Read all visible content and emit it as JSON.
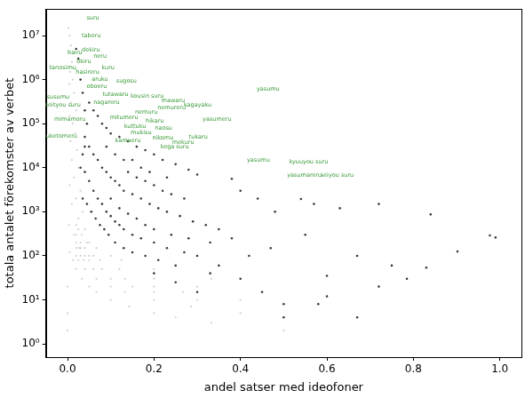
{
  "chart_data": {
    "type": "scatter",
    "xlabel": "andel satser med ideofoner",
    "ylabel": "totala antalet förekomster av verbet",
    "xlim": [
      -0.05,
      1.05
    ],
    "xticks": [
      {
        "value": 0,
        "label": "0.0"
      },
      0.2,
      0.4,
      0.6,
      0.8,
      {
        "value": 1,
        "label": "1.0"
      }
    ],
    "ylim": [
      0.5,
      40000000
    ],
    "yticks": [
      {
        "value": 1,
        "label": "10⁰"
      },
      {
        "value": 10,
        "label": "10¹"
      },
      {
        "value": 100,
        "label": "10²"
      },
      {
        "value": 1000,
        "label": "10³"
      },
      {
        "value": 10000,
        "label": "10⁴"
      },
      {
        "value": 100000,
        "label": "10⁵"
      },
      {
        "value": 1000000,
        "label": "10⁶"
      },
      {
        "value": 10000000,
        "label": "10⁷"
      }
    ],
    "log": "y",
    "grid": false,
    "series": [
      {
        "color": "#d0d0d0",
        "marker": "circle",
        "values": [
          [
            0.002,
            15000000
          ],
          [
            0.005,
            10000000
          ],
          [
            0.008,
            6000000
          ],
          [
            0.003,
            4000000
          ],
          [
            0.01,
            2500000
          ],
          [
            0.006,
            1500000
          ],
          [
            0.012,
            1000000
          ],
          [
            0.004,
            800000
          ],
          [
            0.015,
            500000
          ],
          [
            0.008,
            300000
          ],
          [
            0.02,
            200000
          ],
          [
            0.005,
            150000
          ],
          [
            0.012,
            100000
          ],
          [
            0.018,
            60000
          ],
          [
            0.007,
            40000
          ],
          [
            0.022,
            25000
          ],
          [
            0.01,
            15000
          ],
          [
            0.025,
            10000
          ],
          [
            0.015,
            6000
          ],
          [
            0.005,
            4000
          ],
          [
            0.03,
            3000
          ],
          [
            0.02,
            2000
          ],
          [
            0.01,
            1500
          ],
          [
            0.035,
            1000
          ],
          [
            0.025,
            700
          ],
          [
            0.003,
            500
          ],
          [
            0.04,
            400
          ],
          [
            0.015,
            300
          ],
          [
            0.045,
            200
          ],
          [
            0.03,
            150
          ],
          [
            0.005,
            120
          ],
          [
            0.05,
            100
          ],
          [
            0.5,
            2
          ],
          [
            0.333,
            3
          ],
          [
            0.25,
            4
          ],
          [
            0.2,
            5
          ],
          [
            0.143,
            7
          ],
          [
            0.1,
            10
          ],
          [
            0.067,
            15
          ],
          [
            0.05,
            20
          ],
          [
            0.033,
            30
          ],
          [
            0.02,
            50
          ],
          [
            0.0125,
            80
          ],
          [
            0.4,
            5
          ],
          [
            0.286,
            7
          ],
          [
            0.2,
            10
          ],
          [
            0.133,
            15
          ],
          [
            0.1,
            20
          ],
          [
            0.067,
            30
          ],
          [
            0.04,
            50
          ],
          [
            0.025,
            80
          ],
          [
            0.02,
            100
          ],
          [
            0.3,
            10
          ],
          [
            0.2,
            15
          ],
          [
            0.15,
            20
          ],
          [
            0.1,
            30
          ],
          [
            0.06,
            50
          ],
          [
            0.0375,
            80
          ],
          [
            0.03,
            100
          ],
          [
            0.02,
            150
          ],
          [
            0.4,
            10
          ],
          [
            0.267,
            15
          ],
          [
            0.2,
            20
          ],
          [
            0.133,
            30
          ],
          [
            0.08,
            50
          ],
          [
            0.05,
            80
          ],
          [
            0.04,
            100
          ],
          [
            0.027,
            150
          ],
          [
            0.02,
            200
          ],
          [
            0.3,
            20
          ],
          [
            0.2,
            30
          ],
          [
            0.12,
            50
          ],
          [
            0.075,
            80
          ],
          [
            0.06,
            100
          ],
          [
            0.04,
            150
          ],
          [
            0.03,
            200
          ],
          [
            0.02,
            300
          ],
          [
            0.333,
            30
          ],
          [
            0.2,
            50
          ],
          [
            0.125,
            80
          ],
          [
            0.1,
            100
          ],
          [
            0.067,
            150
          ],
          [
            0.05,
            200
          ],
          [
            0.033,
            300
          ],
          [
            0.025,
            400
          ],
          [
            0.02,
            500
          ],
          [
            0,
            2
          ],
          [
            0,
            5
          ],
          [
            0,
            20
          ]
        ]
      },
      {
        "color": "#3a3a3a",
        "marker": "circle",
        "values": [
          [
            0.05,
            300000
          ],
          [
            0.06,
            200000
          ],
          [
            0.07,
            150000
          ],
          [
            0.08,
            100000
          ],
          [
            0.09,
            80000
          ],
          [
            0.1,
            60000
          ],
          [
            0.12,
            50000
          ],
          [
            0.14,
            40000
          ],
          [
            0.16,
            30000
          ],
          [
            0.18,
            25000
          ],
          [
            0.2,
            20000
          ],
          [
            0.22,
            15000
          ],
          [
            0.25,
            12000
          ],
          [
            0.28,
            9000
          ],
          [
            0.3,
            7000
          ],
          [
            0.04,
            50000
          ],
          [
            0.05,
            30000
          ],
          [
            0.06,
            20000
          ],
          [
            0.07,
            15000
          ],
          [
            0.08,
            10000
          ],
          [
            0.09,
            8000
          ],
          [
            0.1,
            6000
          ],
          [
            0.11,
            5000
          ],
          [
            0.12,
            4000
          ],
          [
            0.13,
            3000
          ],
          [
            0.15,
            2500
          ],
          [
            0.17,
            2000
          ],
          [
            0.19,
            1500
          ],
          [
            0.21,
            1200
          ],
          [
            0.23,
            1000
          ],
          [
            0.26,
            800
          ],
          [
            0.29,
            600
          ],
          [
            0.32,
            500
          ],
          [
            0.35,
            400
          ],
          [
            0.04,
            8000
          ],
          [
            0.05,
            5000
          ],
          [
            0.06,
            3000
          ],
          [
            0.07,
            2000
          ],
          [
            0.08,
            1500
          ],
          [
            0.09,
            1000
          ],
          [
            0.1,
            800
          ],
          [
            0.11,
            600
          ],
          [
            0.12,
            500
          ],
          [
            0.13,
            400
          ],
          [
            0.15,
            300
          ],
          [
            0.17,
            250
          ],
          [
            0.2,
            200
          ],
          [
            0.23,
            150
          ],
          [
            0.27,
            120
          ],
          [
            0.3,
            100
          ],
          [
            0.035,
            2000
          ],
          [
            0.045,
            1500
          ],
          [
            0.055,
            1000
          ],
          [
            0.065,
            700
          ],
          [
            0.075,
            500
          ],
          [
            0.085,
            400
          ],
          [
            0.095,
            300
          ],
          [
            0.11,
            200
          ],
          [
            0.13,
            150
          ],
          [
            0.15,
            120
          ],
          [
            0.18,
            100
          ],
          [
            0.21,
            80
          ],
          [
            0.25,
            60
          ],
          [
            0.03,
            10000
          ],
          [
            0.035,
            20000
          ],
          [
            0.04,
            30000
          ],
          [
            0.045,
            100000
          ],
          [
            0.04,
            200000
          ],
          [
            0.035,
            500000
          ],
          [
            0.03,
            1000000
          ],
          [
            0.025,
            3000000
          ],
          [
            0.02,
            5000000
          ],
          [
            0.14,
            8000
          ],
          [
            0.16,
            6000
          ],
          [
            0.18,
            5000
          ],
          [
            0.2,
            4000
          ],
          [
            0.22,
            3000
          ],
          [
            0.24,
            2500
          ],
          [
            0.27,
            2000
          ],
          [
            0.15,
            15000
          ],
          [
            0.17,
            10000
          ],
          [
            0.19,
            8000
          ],
          [
            0.23,
            6000
          ],
          [
            0.11,
            20000
          ],
          [
            0.13,
            15000
          ],
          [
            0.09,
            30000
          ],
          [
            0.1,
            2000
          ],
          [
            0.12,
            1200
          ],
          [
            0.14,
            900
          ],
          [
            0.16,
            700
          ],
          [
            0.18,
            500
          ],
          [
            0.2,
            400
          ],
          [
            0.24,
            300
          ],
          [
            0.28,
            250
          ],
          [
            0.33,
            200
          ],
          [
            0.38,
            5600
          ],
          [
            0.4,
            3000
          ],
          [
            0.44,
            2000
          ],
          [
            0.48,
            1000
          ],
          [
            0.54,
            1950
          ],
          [
            0.57,
            1500
          ],
          [
            0.63,
            1200
          ],
          [
            0.72,
            1500
          ],
          [
            0.84,
            870
          ],
          [
            0.977,
            290
          ],
          [
            0.99,
            260
          ],
          [
            0.902,
            125
          ],
          [
            0.83,
            54
          ],
          [
            0.785,
            30
          ],
          [
            0.67,
            100
          ],
          [
            0.72,
            20
          ],
          [
            0.6,
            35
          ],
          [
            0.5,
            8
          ],
          [
            0.5,
            4
          ],
          [
            0.67,
            4
          ],
          [
            0.6,
            12
          ],
          [
            0.4,
            30
          ],
          [
            0.45,
            15
          ],
          [
            0.35,
            60
          ],
          [
            0.42,
            100
          ],
          [
            0.55,
            300
          ],
          [
            0.47,
            150
          ],
          [
            0.38,
            250
          ],
          [
            0.33,
            40
          ],
          [
            0.58,
            8
          ],
          [
            0.75,
            60
          ],
          [
            0.3,
            15
          ],
          [
            0.25,
            25
          ],
          [
            0.2,
            40
          ]
        ]
      }
    ],
    "annotations": {
      "color": "#3a9a3a",
      "items": [
        {
          "text": "suru",
          "x": 0.044,
          "y": 22000000
        },
        {
          "text": "taberu",
          "x": 0.033,
          "y": 8400000
        },
        {
          "text": "dekiru",
          "x": 0.033,
          "y": 4100000
        },
        {
          "text": "hairu",
          "x": 0.0,
          "y": 3500000
        },
        {
          "text": "neru",
          "x": 0.06,
          "y": 2900000
        },
        {
          "text": "okiru",
          "x": 0.021,
          "y": 2200000
        },
        {
          "text": "kuru",
          "x": 0.079,
          "y": 1600000
        },
        {
          "text": "tanosimu",
          "x": -0.042,
          "y": 1560000
        },
        {
          "text": "hasireru",
          "x": 0.019,
          "y": 1260000
        },
        {
          "text": "aruku",
          "x": 0.056,
          "y": 880000
        },
        {
          "text": "sugosu",
          "x": 0.1125,
          "y": 790000
        },
        {
          "text": "oboeru",
          "x": 0.044,
          "y": 590000
        },
        {
          "text": "tutawaru",
          "x": 0.081,
          "y": 400000
        },
        {
          "text": "yasumu",
          "x": 0.4375,
          "y": 520000
        },
        {
          "text": "susumu",
          "x": -0.048,
          "y": 350000
        },
        {
          "text": "seityou suru",
          "x": -0.052,
          "y": 230000
        },
        {
          "text": "nagareru",
          "x": 0.06,
          "y": 260000
        },
        {
          "text": "kousin suru",
          "x": 0.146,
          "y": 360000
        },
        {
          "text": "mawaru",
          "x": 0.217,
          "y": 280000
        },
        {
          "text": "kagayaku",
          "x": 0.269,
          "y": 230000
        },
        {
          "text": "nemureru",
          "x": 0.208,
          "y": 200000
        },
        {
          "text": "nemuru",
          "x": 0.156,
          "y": 156000
        },
        {
          "text": "mitumeru",
          "x": 0.098,
          "y": 120000
        },
        {
          "text": "hikaru",
          "x": 0.181,
          "y": 100000
        },
        {
          "text": "yasumeru",
          "x": 0.3125,
          "y": 110000
        },
        {
          "text": "mimamoru",
          "x": -0.031,
          "y": 110000
        },
        {
          "text": "kuttuku",
          "x": 0.131,
          "y": 76000
        },
        {
          "text": "naosu",
          "x": 0.202,
          "y": 67000
        },
        {
          "text": "mukisu",
          "x": 0.146,
          "y": 54000
        },
        {
          "text": "nikomu",
          "x": 0.196,
          "y": 41000
        },
        {
          "text": "tukaru",
          "x": 0.281,
          "y": 43000
        },
        {
          "text": "uketomeru",
          "x": -0.05,
          "y": 45000
        },
        {
          "text": "kamaeru",
          "x": 0.11,
          "y": 36000
        },
        {
          "text": "mekuru",
          "x": 0.242,
          "y": 32000
        },
        {
          "text": "kega suru",
          "x": 0.215,
          "y": 25000
        },
        {
          "text": "yasumu",
          "x": 0.415,
          "y": 13000
        },
        {
          "text": "kyuuyou suru",
          "x": 0.5125,
          "y": 11500
        },
        {
          "text": "yasumareru",
          "x": 0.508,
          "y": 5900
        },
        {
          "text": "seiyou suru",
          "x": 0.585,
          "y": 5900
        }
      ]
    }
  }
}
